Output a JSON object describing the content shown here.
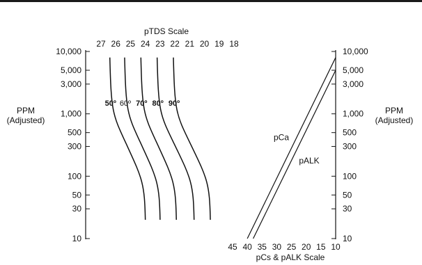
{
  "chart_data": {
    "type": "line",
    "top_axis": {
      "title": "pTDS Scale",
      "ticks": [
        "27",
        "26",
        "25",
        "24",
        "23",
        "22",
        "21",
        "20",
        "19",
        "18"
      ]
    },
    "bottom_axis": {
      "title": "pCs & pALK Scale",
      "ticks": [
        "45",
        "40",
        "35",
        "30",
        "25",
        "20",
        "15",
        "10"
      ]
    },
    "left_axis": {
      "label_line1": "PPM",
      "label_line2": "(Adjusted)",
      "scale": "log",
      "range": [
        10,
        10000
      ],
      "ticks": [
        {
          "value": 10000,
          "label": "10,000"
        },
        {
          "value": 5000,
          "label": "5,000"
        },
        {
          "value": 3000,
          "label": "3,000"
        },
        {
          "value": 1000,
          "label": "1,000"
        },
        {
          "value": 500,
          "label": "500"
        },
        {
          "value": 300,
          "label": "300"
        },
        {
          "value": 100,
          "label": "100"
        },
        {
          "value": 50,
          "label": "50"
        },
        {
          "value": 30,
          "label": "30"
        },
        {
          "value": 10,
          "label": "10"
        }
      ]
    },
    "right_axis": {
      "label_line1": "PPM",
      "label_line2": "(Adjusted)",
      "ticks": [
        {
          "value": 10000,
          "label": "10,000"
        },
        {
          "value": 5000,
          "label": "5,000"
        },
        {
          "value": 3000,
          "label": "3,000"
        },
        {
          "value": 1000,
          "label": "1,000"
        },
        {
          "value": 500,
          "label": "500"
        },
        {
          "value": 300,
          "label": "300"
        },
        {
          "value": 100,
          "label": "100"
        },
        {
          "value": 50,
          "label": "50"
        },
        {
          "value": 30,
          "label": "30"
        },
        {
          "value": 10,
          "label": "10"
        }
      ]
    },
    "temperature_curves": [
      {
        "label": "50º",
        "bold": true,
        "pTDS_top": 26.4,
        "pTDS_bottom": 24.0
      },
      {
        "label": "60º",
        "bold": false,
        "pTDS_top": 25.4,
        "pTDS_bottom": 23.0
      },
      {
        "label": "70º",
        "bold": true,
        "pTDS_top": 24.3,
        "pTDS_bottom": 21.9
      },
      {
        "label": "80º",
        "bold": true,
        "pTDS_top": 23.2,
        "pTDS_bottom": 20.7
      },
      {
        "label": "90º",
        "bold": true,
        "pTDS_top": 22.1,
        "pTDS_bottom": 19.6
      }
    ],
    "series": [
      {
        "name": "pCa",
        "from": {
          "pscale": 40.0,
          "ppm": 10
        },
        "to": {
          "pscale": 10.0,
          "ppm": 8000
        }
      },
      {
        "name": "pALK",
        "from": {
          "pscale": 38.0,
          "ppm": 10
        },
        "to": {
          "pscale": 10.0,
          "ppm": 5000
        }
      }
    ],
    "grid": false
  }
}
